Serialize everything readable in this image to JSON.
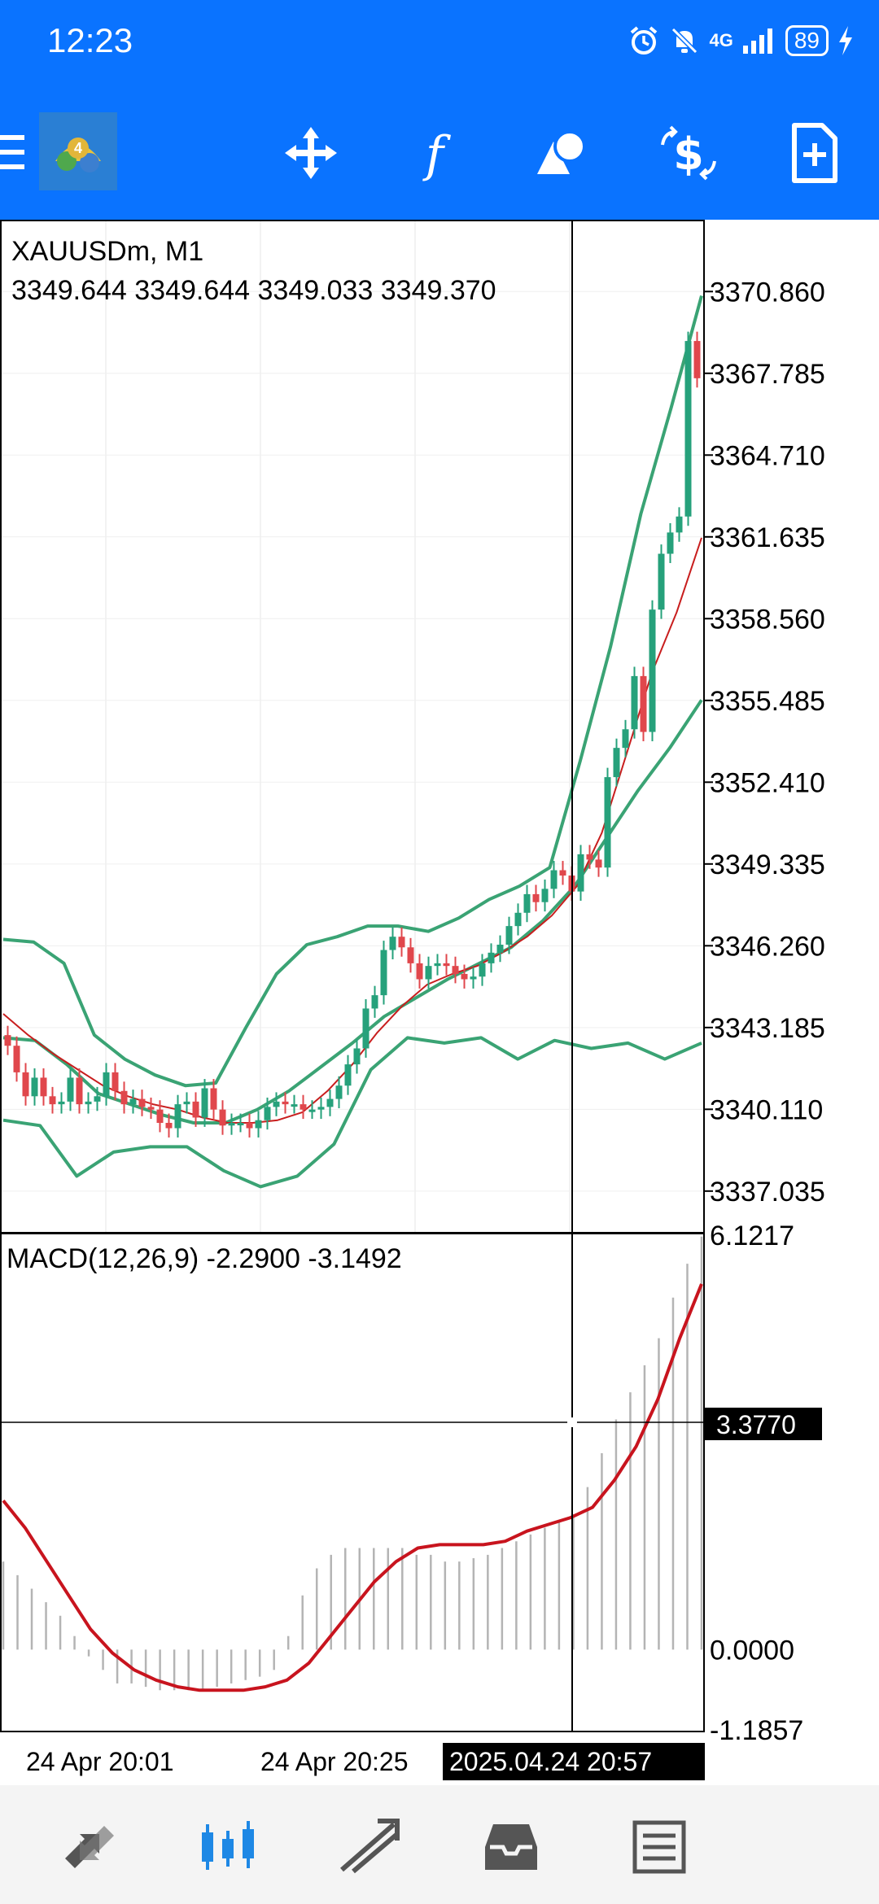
{
  "status_bar": {
    "time": "12:23",
    "network": "4G",
    "battery": "89",
    "icons": [
      "alarm-icon",
      "mute-icon",
      "signal-icon",
      "charging-icon"
    ]
  },
  "toolbar": {
    "icons": [
      "metatrader-logo-icon",
      "crosshair-move-icon",
      "indicators-f-icon",
      "objects-shapes-icon",
      "trade-dollar-icon",
      "new-order-icon"
    ]
  },
  "chart": {
    "symbol_label": "XAUUSDm, M1",
    "ohlc_label": "3349.644 3349.644 3349.033 3349.370",
    "price_ticks": [
      "3370.860",
      "3367.785",
      "3364.710",
      "3361.635",
      "3358.560",
      "3355.485",
      "3352.410",
      "3349.335",
      "3346.260",
      "3343.185",
      "3340.110",
      "3337.035"
    ],
    "macd_label": "MACD(12,26,9) -2.2900 -3.1492",
    "macd_ticks": [
      "6.1217",
      "0.0000",
      "-1.1857"
    ],
    "crosshair_value": "3.3770",
    "time_labels": [
      "24 Apr 20:01",
      "24 Apr 20:25"
    ],
    "crosshair_time": "2025.04.24 20:57"
  },
  "bottom_nav": {
    "icons": [
      "quotes-icon",
      "chart-icon",
      "trade-icon",
      "history-icon",
      "messages-icon"
    ]
  },
  "colors": {
    "header_blue": "#0a73ff",
    "bull": "#26a17b",
    "bear": "#e0474c",
    "bands": "#3aa374",
    "ma_red": "#c81e1e",
    "macd_signal": "#c8141e",
    "histogram": "#b4b4b4"
  },
  "chart_data": [
    {
      "type": "candlestick",
      "title": "XAUUSDm, M1",
      "ylim": [
        3335.5,
        3373.5
      ],
      "yticks": [
        3370.86,
        3367.785,
        3364.71,
        3361.635,
        3358.56,
        3355.485,
        3352.41,
        3349.335,
        3346.26,
        3343.185,
        3340.11,
        3337.035
      ],
      "grid": true,
      "series": [
        {
          "name": "candles_close",
          "values": [
            3342.5,
            3341.5,
            3340.6,
            3341.3,
            3340.6,
            3340.3,
            3340.4,
            3341.3,
            3340.3,
            3340.4,
            3340.6,
            3341.5,
            3340.8,
            3340.3,
            3340.5,
            3340.2,
            3340.1,
            3339.6,
            3339.4,
            3340.3,
            3340.4,
            3339.8,
            3340.9,
            3340.1,
            3339.5,
            3339.6,
            3339.6,
            3339.4,
            3339.7,
            3340.2,
            3340.4,
            3340.3,
            3340.3,
            3340.1,
            3340.1,
            3340.2,
            3340.5,
            3341.0,
            3341.8,
            3342.4,
            3343.9,
            3344.4,
            3346.1,
            3346.6,
            3346.2,
            3345.6,
            3345.0,
            3345.5,
            3345.6,
            3345.5,
            3345.2,
            3345.0,
            3345.1,
            3345.6,
            3346.0,
            3346.3,
            3347.0,
            3347.5,
            3348.2,
            3347.9,
            3348.4,
            3349.1,
            3348.9,
            3348.3,
            3349.7,
            3349.5,
            3349.2,
            3352.6,
            3353.7,
            3354.4,
            3356.4,
            3354.3,
            3358.9,
            3361.0,
            3361.8,
            3362.4,
            3369.0,
            3367.6
          ]
        },
        {
          "name": "ma_fast",
          "values": [
            3343.7,
            3342.9,
            3342.2,
            3341.6,
            3341.0,
            3340.6,
            3340.3,
            3340.1,
            3339.8,
            3339.6,
            3339.6,
            3339.7,
            3340.0,
            3340.8,
            3341.8,
            3343.0,
            3344.0,
            3344.8,
            3345.2,
            3345.5,
            3346.0,
            3346.6,
            3347.4,
            3348.5,
            3350.5,
            3353.5,
            3356.5,
            3358.8,
            3361.6
          ]
        },
        {
          "name": "bb_upper",
          "values": [
            3346.5,
            3346.4,
            3345.6,
            3342.9,
            3342.0,
            3341.4,
            3341.0,
            3341.1,
            3343.2,
            3345.2,
            3346.3,
            3346.6,
            3347.0,
            3347.0,
            3346.8,
            3347.3,
            3348.0,
            3348.5,
            3349.2,
            3353.2,
            3357.5,
            3362.5,
            3366.5,
            3370.7
          ]
        },
        {
          "name": "bb_middle",
          "values": [
            3342.8,
            3342.7,
            3341.8,
            3340.7,
            3340.3,
            3339.9,
            3339.6,
            3339.6,
            3340.1,
            3340.8,
            3341.7,
            3342.6,
            3343.6,
            3344.3,
            3345.0,
            3345.6,
            3346.2,
            3347.2,
            3348.5,
            3350.3,
            3352.1,
            3353.7,
            3355.5
          ]
        },
        {
          "name": "bb_lower",
          "values": [
            3339.7,
            3339.5,
            3337.6,
            3338.5,
            3338.7,
            3338.7,
            3337.8,
            3337.2,
            3337.6,
            3338.8,
            3341.6,
            3342.8,
            3342.6,
            3342.8,
            3342.0,
            3342.7,
            3342.4,
            3342.6,
            3342.0,
            3342.6
          ]
        }
      ]
    },
    {
      "type": "line",
      "title": "MACD(12,26,9) -2.2900 -3.1492",
      "ylim": [
        -1.1857,
        6.1217
      ],
      "yticks": [
        6.1217,
        0.0,
        -1.1857
      ],
      "series": [
        {
          "name": "histogram",
          "values": [
            1.3,
            1.1,
            0.9,
            0.7,
            0.5,
            0.2,
            -0.1,
            -0.3,
            -0.5,
            -0.5,
            -0.55,
            -0.6,
            -0.6,
            -0.6,
            -0.6,
            -0.55,
            -0.5,
            -0.45,
            -0.4,
            -0.3,
            0.2,
            0.8,
            1.2,
            1.4,
            1.5,
            1.5,
            1.5,
            1.5,
            1.5,
            1.4,
            1.4,
            1.3,
            1.3,
            1.35,
            1.4,
            1.5,
            1.6,
            1.7,
            1.8,
            1.9,
            2.0,
            2.4,
            2.9,
            3.4,
            3.8,
            4.2,
            4.6,
            5.2,
            5.7,
            6.1
          ]
        },
        {
          "name": "signal",
          "values": [
            2.2,
            1.8,
            1.3,
            0.8,
            0.3,
            -0.05,
            -0.3,
            -0.45,
            -0.55,
            -0.6,
            -0.6,
            -0.6,
            -0.55,
            -0.45,
            -0.2,
            0.2,
            0.6,
            1.0,
            1.3,
            1.5,
            1.55,
            1.55,
            1.55,
            1.6,
            1.75,
            1.85,
            1.95,
            2.1,
            2.5,
            3.0,
            3.7,
            4.6,
            5.4
          ]
        }
      ]
    }
  ]
}
